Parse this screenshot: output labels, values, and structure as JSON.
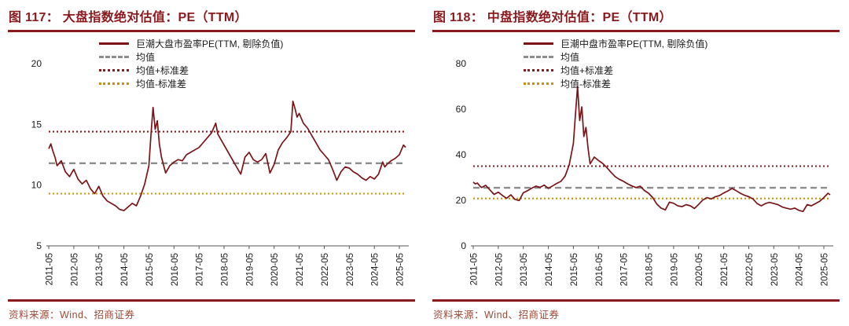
{
  "colors": {
    "accent": "#8B1A1E",
    "series": "#7A1418",
    "mean": "#8C8C8C",
    "plus_std": "#8B1A1E",
    "minus_std": "#C9920E",
    "source_text": "#9C4A37",
    "axis": "#555555",
    "tick_text": "#1A1A1A"
  },
  "footer": {
    "source": "资料来源：Wind、招商证券"
  },
  "chart_data": [
    {
      "type": "line",
      "fig_label": "图 117",
      "title": "大盘指数绝对估值：PE（TTM）",
      "title_full": "图 117： 大盘指数绝对估值：PE（TTM）",
      "legend": [
        "巨潮大盘市盈率PE(TTM, 剔除负值)",
        "均值",
        "均值+标准差",
        "均值-标准差"
      ],
      "ylim": [
        5,
        20
      ],
      "yticks": [
        5,
        10,
        15,
        20
      ],
      "x_total_months": 171,
      "x_tick_months": [
        0,
        12,
        24,
        36,
        48,
        60,
        72,
        84,
        96,
        108,
        120,
        132,
        144,
        156,
        168
      ],
      "x_tick_labels": [
        "2011-05",
        "2012-05",
        "2013-05",
        "2014-05",
        "2015-05",
        "2016-05",
        "2017-05",
        "2018-05",
        "2019-05",
        "2020-05",
        "2021-05",
        "2022-05",
        "2023-05",
        "2024-05",
        "2025-05"
      ],
      "mean": 11.8,
      "mean_plus_std": 14.4,
      "mean_minus_std": 9.3,
      "series": {
        "name": "巨潮大盘市盈率PE(TTM, 剔除负值)",
        "points": [
          [
            0,
            13.0
          ],
          [
            1,
            13.4
          ],
          [
            2,
            12.8
          ],
          [
            3,
            12.3
          ],
          [
            4,
            11.6
          ],
          [
            6,
            12.0
          ],
          [
            8,
            11.1
          ],
          [
            10,
            10.7
          ],
          [
            12,
            11.3
          ],
          [
            14,
            10.5
          ],
          [
            16,
            10.1
          ],
          [
            18,
            10.4
          ],
          [
            20,
            9.7
          ],
          [
            22,
            9.3
          ],
          [
            24,
            9.9
          ],
          [
            26,
            9.1
          ],
          [
            28,
            8.7
          ],
          [
            30,
            8.5
          ],
          [
            32,
            8.3
          ],
          [
            34,
            8.0
          ],
          [
            36,
            7.9
          ],
          [
            38,
            8.2
          ],
          [
            40,
            8.5
          ],
          [
            42,
            8.3
          ],
          [
            44,
            9.1
          ],
          [
            46,
            10.1
          ],
          [
            48,
            11.6
          ],
          [
            49,
            14.2
          ],
          [
            50,
            16.4
          ],
          [
            51,
            14.6
          ],
          [
            52,
            15.3
          ],
          [
            53,
            13.4
          ],
          [
            54,
            12.3
          ],
          [
            56,
            11.0
          ],
          [
            58,
            11.6
          ],
          [
            60,
            11.9
          ],
          [
            62,
            12.1
          ],
          [
            64,
            12.0
          ],
          [
            66,
            12.5
          ],
          [
            68,
            12.7
          ],
          [
            70,
            12.9
          ],
          [
            72,
            13.1
          ],
          [
            74,
            13.5
          ],
          [
            76,
            13.9
          ],
          [
            78,
            14.3
          ],
          [
            80,
            15.1
          ],
          [
            81,
            14.2
          ],
          [
            82,
            13.9
          ],
          [
            84,
            13.3
          ],
          [
            86,
            12.7
          ],
          [
            88,
            12.1
          ],
          [
            90,
            11.5
          ],
          [
            92,
            10.9
          ],
          [
            94,
            12.3
          ],
          [
            96,
            12.7
          ],
          [
            98,
            12.1
          ],
          [
            100,
            11.9
          ],
          [
            102,
            12.1
          ],
          [
            104,
            12.6
          ],
          [
            106,
            11.0
          ],
          [
            108,
            11.7
          ],
          [
            110,
            12.9
          ],
          [
            112,
            13.5
          ],
          [
            114,
            13.9
          ],
          [
            116,
            14.4
          ],
          [
            117,
            16.9
          ],
          [
            118,
            16.3
          ],
          [
            119,
            15.6
          ],
          [
            120,
            15.9
          ],
          [
            122,
            15.1
          ],
          [
            124,
            14.7
          ],
          [
            126,
            14.1
          ],
          [
            128,
            13.5
          ],
          [
            130,
            12.9
          ],
          [
            132,
            12.5
          ],
          [
            134,
            12.1
          ],
          [
            136,
            11.3
          ],
          [
            138,
            10.4
          ],
          [
            140,
            11.1
          ],
          [
            142,
            11.5
          ],
          [
            144,
            11.4
          ],
          [
            146,
            11.1
          ],
          [
            148,
            10.9
          ],
          [
            150,
            10.6
          ],
          [
            152,
            10.4
          ],
          [
            154,
            10.7
          ],
          [
            156,
            10.5
          ],
          [
            158,
            10.9
          ],
          [
            160,
            11.9
          ],
          [
            161,
            11.5
          ],
          [
            162,
            11.7
          ],
          [
            164,
            12.0
          ],
          [
            166,
            12.2
          ],
          [
            168,
            12.5
          ],
          [
            170,
            13.3
          ],
          [
            171,
            13.1
          ]
        ]
      }
    },
    {
      "type": "line",
      "fig_label": "图 118",
      "title": "中盘指数绝对估值：PE（TTM）",
      "title_full": "图 118： 中盘指数绝对估值：PE（TTM）",
      "legend": [
        "巨潮中盘市盈率PE(TTM, 剔除负值)",
        "均值",
        "均值+标准差",
        "均值-标准差"
      ],
      "ylim": [
        0,
        80
      ],
      "yticks": [
        0,
        20,
        40,
        60,
        80
      ],
      "x_total_months": 171,
      "x_tick_months": [
        0,
        12,
        24,
        36,
        48,
        60,
        72,
        84,
        96,
        108,
        120,
        132,
        144,
        156,
        168
      ],
      "x_tick_labels": [
        "2011-05",
        "2012-05",
        "2013-05",
        "2014-05",
        "2015-05",
        "2016-05",
        "2017-05",
        "2018-05",
        "2019-05",
        "2020-05",
        "2021-05",
        "2022-05",
        "2023-05",
        "2024-05",
        "2025-05"
      ],
      "mean": 25.5,
      "mean_plus_std": 35.0,
      "mean_minus_std": 20.8,
      "series": {
        "name": "巨潮中盘市盈率PE(TTM, 剔除负值)",
        "points": [
          [
            0,
            28.0
          ],
          [
            1,
            27.2
          ],
          [
            2,
            27.6
          ],
          [
            3,
            26.4
          ],
          [
            4,
            25.6
          ],
          [
            6,
            26.6
          ],
          [
            8,
            24.6
          ],
          [
            10,
            22.6
          ],
          [
            12,
            23.6
          ],
          [
            14,
            22.1
          ],
          [
            16,
            20.9
          ],
          [
            18,
            22.4
          ],
          [
            20,
            20.4
          ],
          [
            22,
            19.9
          ],
          [
            24,
            23.3
          ],
          [
            26,
            24.2
          ],
          [
            28,
            25.3
          ],
          [
            30,
            26.2
          ],
          [
            32,
            25.7
          ],
          [
            34,
            26.7
          ],
          [
            36,
            25.2
          ],
          [
            38,
            26.3
          ],
          [
            40,
            27.4
          ],
          [
            42,
            28.3
          ],
          [
            44,
            30.6
          ],
          [
            46,
            35.6
          ],
          [
            48,
            45.0
          ],
          [
            49,
            58.0
          ],
          [
            50,
            70.0
          ],
          [
            51,
            55.0
          ],
          [
            52,
            61.0
          ],
          [
            53,
            48.0
          ],
          [
            54,
            52.0
          ],
          [
            55,
            43.0
          ],
          [
            56,
            36.0
          ],
          [
            58,
            39.0
          ],
          [
            60,
            37.5
          ],
          [
            62,
            36.2
          ],
          [
            64,
            34.4
          ],
          [
            66,
            32.3
          ],
          [
            68,
            30.4
          ],
          [
            70,
            29.2
          ],
          [
            72,
            28.3
          ],
          [
            74,
            27.2
          ],
          [
            76,
            26.3
          ],
          [
            78,
            25.6
          ],
          [
            80,
            26.2
          ],
          [
            82,
            24.3
          ],
          [
            84,
            23.1
          ],
          [
            86,
            21.2
          ],
          [
            88,
            18.3
          ],
          [
            90,
            16.6
          ],
          [
            92,
            15.8
          ],
          [
            94,
            19.2
          ],
          [
            96,
            18.7
          ],
          [
            98,
            17.6
          ],
          [
            100,
            17.2
          ],
          [
            102,
            18.1
          ],
          [
            104,
            17.6
          ],
          [
            106,
            16.4
          ],
          [
            108,
            18.2
          ],
          [
            110,
            20.1
          ],
          [
            112,
            21.2
          ],
          [
            114,
            20.6
          ],
          [
            116,
            21.6
          ],
          [
            118,
            22.1
          ],
          [
            120,
            23.2
          ],
          [
            122,
            24.1
          ],
          [
            124,
            25.2
          ],
          [
            126,
            24.2
          ],
          [
            128,
            23.1
          ],
          [
            130,
            22.2
          ],
          [
            132,
            21.6
          ],
          [
            134,
            20.6
          ],
          [
            136,
            18.6
          ],
          [
            138,
            17.6
          ],
          [
            140,
            18.6
          ],
          [
            142,
            19.1
          ],
          [
            144,
            18.6
          ],
          [
            146,
            18.1
          ],
          [
            148,
            17.1
          ],
          [
            150,
            16.6
          ],
          [
            152,
            16.1
          ],
          [
            154,
            16.6
          ],
          [
            156,
            15.6
          ],
          [
            158,
            15.1
          ],
          [
            160,
            18.1
          ],
          [
            162,
            17.6
          ],
          [
            164,
            18.6
          ],
          [
            166,
            19.6
          ],
          [
            168,
            21.2
          ],
          [
            170,
            23.1
          ],
          [
            171,
            22.4
          ]
        ]
      }
    }
  ]
}
